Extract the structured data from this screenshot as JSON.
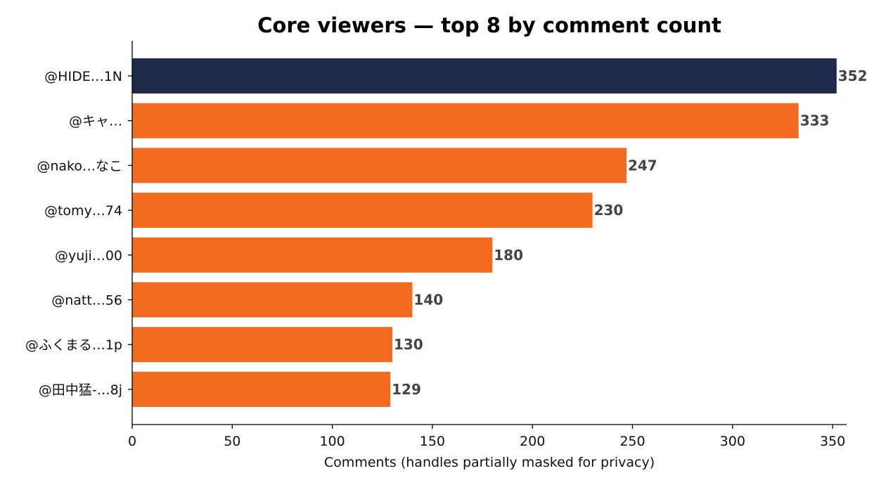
{
  "chart_data": {
    "type": "bar",
    "orientation": "horizontal",
    "title": "Core viewers — top 8 by comment count",
    "xlabel": "Comments (handles partially masked for privacy)",
    "ylabel": "",
    "categories": [
      "@HIDE…1N",
      "@キャ…",
      "@nako…なこ",
      "@tomy…74",
      "@yuji…00",
      "@natt…56",
      "@ふくまる…1p",
      "@田中猛-…8j"
    ],
    "values": [
      352,
      333,
      247,
      230,
      180,
      140,
      130,
      129
    ],
    "xlim": [
      0,
      357
    ],
    "xticks": [
      0,
      50,
      100,
      150,
      200,
      250,
      300,
      350
    ],
    "grid": false,
    "colors": {
      "highlight": "#1d2a4b",
      "bar": "#f26b21",
      "value_label": "#444444"
    }
  }
}
